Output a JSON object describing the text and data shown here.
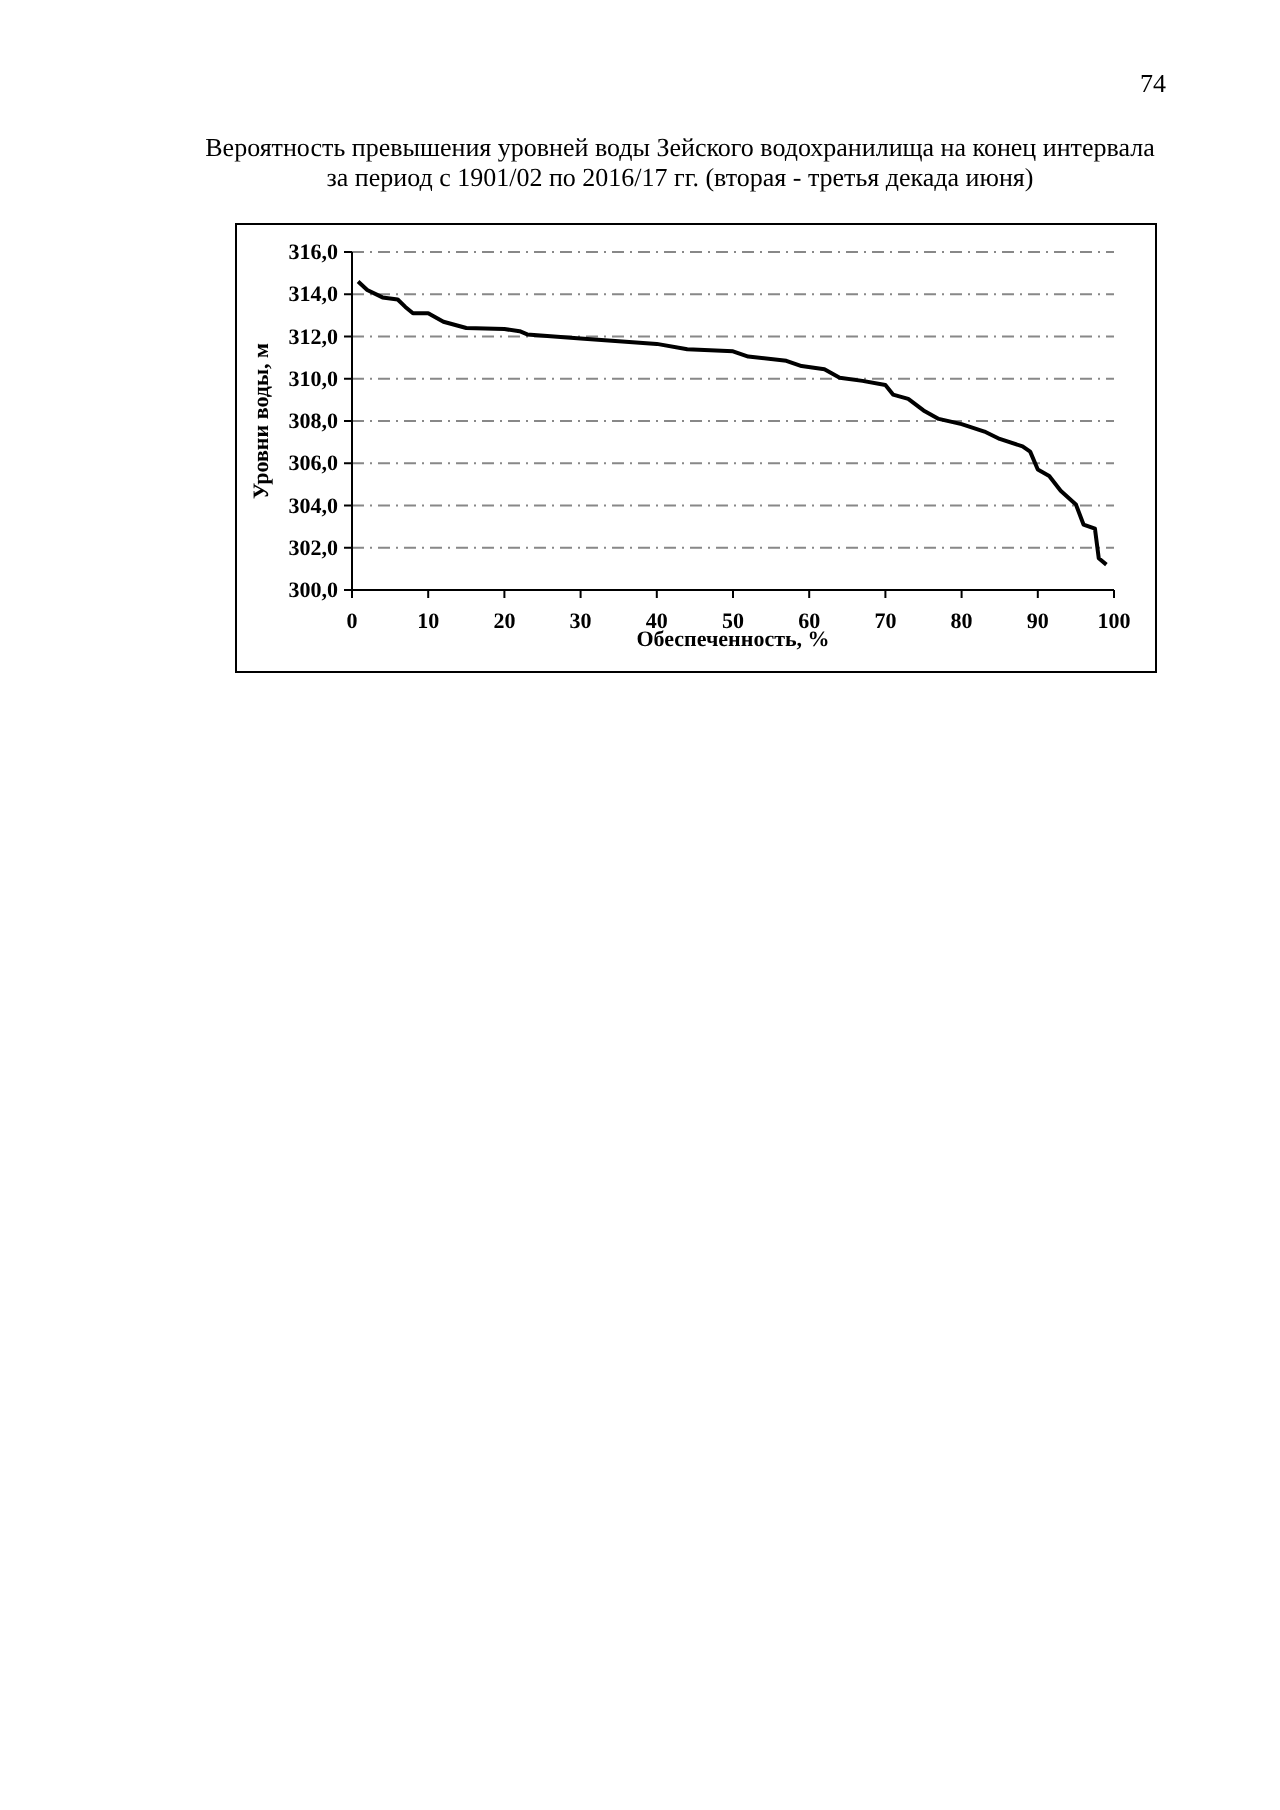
{
  "chart_data": {
    "type": "line",
    "title": "Вероятность превышения уровней воды Зейского водохранилища на конец интервала за период с 1901/02 по 2016/17 гг. (вторая - третья декада июня)",
    "xlabel": "Обеспеченность, %",
    "ylabel": "Уровни воды, м",
    "annotations": [
      "74"
    ],
    "xlim": [
      0,
      100
    ],
    "xticks": [
      0,
      10,
      20,
      30,
      40,
      50,
      60,
      70,
      80,
      90,
      100
    ],
    "ylim": [
      300,
      316
    ],
    "yticks": [
      {
        "value": 300,
        "label": "300,0"
      },
      {
        "value": 302,
        "label": "302,0"
      },
      {
        "value": 304,
        "label": "304,0"
      },
      {
        "value": 306,
        "label": "306,0"
      },
      {
        "value": 308,
        "label": "308,0"
      },
      {
        "value": 310,
        "label": "310,0"
      },
      {
        "value": 312,
        "label": "312,0"
      },
      {
        "value": 314,
        "label": "314,0"
      },
      {
        "value": 316,
        "label": "316,0"
      }
    ],
    "grid": "y",
    "marker": "none",
    "line_style": "solid",
    "x": [
      0.8,
      2,
      4,
      6,
      7,
      8,
      10,
      12,
      15,
      20,
      22,
      23,
      30,
      40,
      44,
      50,
      52,
      57,
      59,
      62,
      64,
      67,
      70,
      71,
      73,
      75,
      77,
      80,
      83,
      85,
      88,
      89,
      90,
      91.5,
      93,
      95,
      96,
      97.5,
      98,
      99
    ],
    "series": [
      {
        "color": "#000000",
        "values": [
          314.6,
          314.2,
          313.85,
          313.75,
          313.4,
          313.1,
          313.1,
          312.7,
          312.4,
          312.35,
          312.25,
          312.1,
          311.9,
          311.65,
          311.4,
          311.3,
          311.05,
          310.85,
          310.6,
          310.45,
          310.05,
          309.9,
          309.7,
          309.25,
          309.05,
          308.5,
          308.1,
          307.85,
          307.5,
          307.15,
          306.8,
          306.55,
          305.7,
          305.4,
          304.7,
          304.05,
          303.1,
          302.9,
          301.5,
          301.2
        ]
      }
    ]
  }
}
